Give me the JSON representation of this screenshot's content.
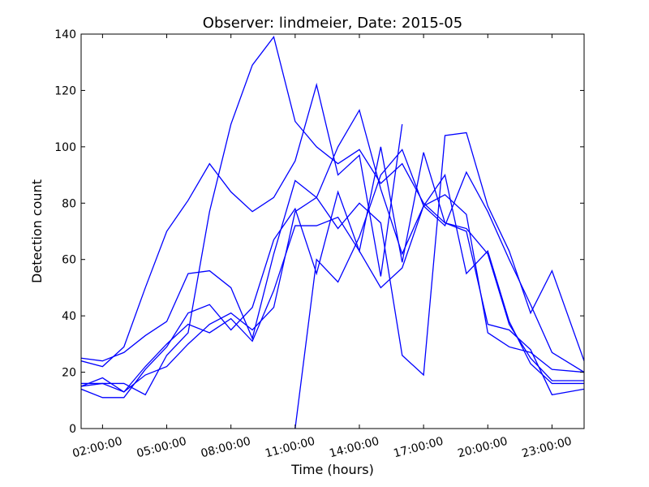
{
  "chart_data": {
    "type": "line",
    "title": "Observer: lindmeier, Date: 2015-05",
    "xlabel": "Time (hours)",
    "ylabel": "Detection count",
    "xlim": [
      1,
      24.5
    ],
    "ylim": [
      0,
      140
    ],
    "x_ticks": [
      2,
      5,
      8,
      11,
      14,
      17,
      20,
      23
    ],
    "x_tick_labels": [
      "02:00:00",
      "05:00:00",
      "08:00:00",
      "11:00:00",
      "14:00:00",
      "17:00:00",
      "20:00:00",
      "23:00:00"
    ],
    "y_ticks": [
      0,
      20,
      40,
      60,
      80,
      100,
      120,
      140
    ],
    "y_tick_labels": [
      "0",
      "20",
      "40",
      "60",
      "80",
      "100",
      "120",
      "140"
    ],
    "grid": false,
    "line_color": "#0000ff",
    "series": [
      {
        "x": [
          1,
          2,
          3,
          4,
          5,
          6,
          7,
          8,
          9,
          10,
          11,
          12,
          13,
          14,
          15,
          16,
          17,
          18,
          19,
          20,
          21,
          22,
          23,
          24.5
        ],
        "y": [
          24,
          22,
          29,
          50,
          70,
          81,
          94,
          84,
          77,
          82,
          95,
          122,
          90,
          97,
          54,
          108,
          null,
          null,
          null,
          null,
          null,
          null,
          null,
          null
        ]
      },
      {
        "x": [
          1,
          2,
          3,
          4,
          5,
          6,
          7,
          8,
          9,
          10,
          11,
          12,
          13,
          14,
          15,
          16,
          17,
          18,
          19,
          20,
          21,
          22,
          23,
          24.5
        ],
        "y": [
          16,
          16,
          16,
          12,
          26,
          34,
          77,
          108,
          129,
          139,
          109,
          100,
          94,
          99,
          87,
          94,
          80,
          73,
          71,
          62,
          37,
          25,
          17,
          17
        ]
      },
      {
        "x": [
          1,
          2,
          3,
          4,
          5,
          6,
          7,
          8,
          9,
          10,
          11,
          12,
          13,
          14,
          15,
          16,
          17,
          18,
          19,
          20,
          21,
          22,
          23,
          24.5
        ],
        "y": [
          25,
          24,
          27,
          33,
          38,
          55,
          56,
          50,
          32,
          62,
          88,
          82,
          71,
          80,
          73,
          26,
          19,
          104,
          105,
          79,
          63,
          41,
          56,
          24
        ]
      },
      {
        "x": [
          1,
          2,
          3,
          4,
          5,
          6,
          7,
          8,
          9,
          10,
          11,
          12,
          13,
          14,
          15,
          16,
          17,
          18,
          19,
          20,
          21,
          22,
          23,
          24.5
        ],
        "y": [
          14,
          11,
          11,
          21,
          29,
          41,
          44,
          35,
          43,
          67,
          78,
          55,
          84,
          63,
          100,
          59,
          98,
          73,
          70,
          37,
          35,
          28,
          12,
          14
        ]
      },
      {
        "x": [
          1,
          2,
          3,
          4,
          5,
          6,
          7,
          8,
          9,
          10,
          11,
          12,
          13,
          14,
          15,
          16,
          17,
          18,
          19,
          20,
          21,
          22,
          23,
          24.5
        ],
        "y": [
          15,
          18,
          13,
          22,
          30,
          37,
          34,
          39,
          31,
          49,
          72,
          72,
          75,
          63,
          50,
          57,
          79,
          90,
          55,
          63,
          38,
          23,
          16,
          16
        ]
      },
      {
        "x": [
          1,
          2,
          3,
          4,
          5,
          6,
          7,
          8,
          9,
          10,
          11,
          12,
          13,
          14,
          15,
          16,
          17,
          18,
          19,
          20,
          21,
          22,
          23,
          24.5
        ],
        "y": [
          null,
          null,
          null,
          null,
          null,
          null,
          null,
          null,
          null,
          null,
          0,
          60,
          52,
          68,
          90,
          99,
          79,
          83,
          76,
          34,
          29,
          27,
          21,
          20
        ]
      },
      {
        "x": [
          1,
          2,
          3,
          4,
          5,
          6,
          7,
          8,
          9,
          10,
          11,
          12,
          13,
          14,
          15,
          16,
          17,
          18,
          19,
          20,
          21,
          22,
          23,
          24.5
        ],
        "y": [
          15,
          16,
          13,
          19,
          22,
          30,
          37,
          41,
          35,
          43,
          77,
          82,
          100,
          113,
          85,
          62,
          79,
          72,
          91,
          77,
          60,
          44,
          27,
          20
        ]
      }
    ]
  }
}
